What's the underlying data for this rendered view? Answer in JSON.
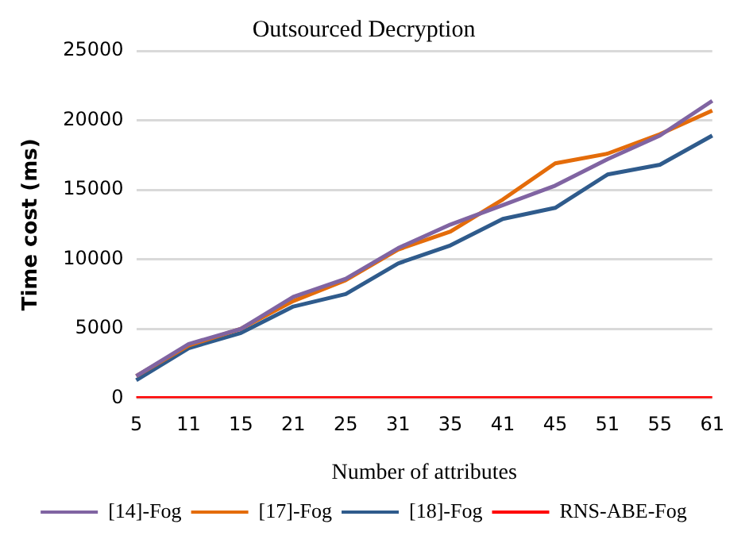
{
  "chart_data": {
    "type": "line",
    "title": "Outsourced Decryption",
    "xlabel": "Number of attributes",
    "ylabel": "Time cost (ms)",
    "categories": [
      "5",
      "11",
      "15",
      "21",
      "25",
      "31",
      "35",
      "41",
      "45",
      "51",
      "55",
      "61"
    ],
    "series": [
      {
        "name": "[14]-Fog",
        "color": "#8064a2",
        "values": [
          1600,
          3900,
          5000,
          7300,
          8600,
          10800,
          12500,
          13900,
          15300,
          17200,
          18900,
          21400
        ]
      },
      {
        "name": "[17]-Fog",
        "color": "#e46c0a",
        "values": [
          1600,
          3800,
          5000,
          7000,
          8500,
          10700,
          12000,
          14300,
          16900,
          17600,
          19000,
          20700
        ]
      },
      {
        "name": "[18]-Fog",
        "color": "#2f5b8c",
        "values": [
          1300,
          3600,
          4700,
          6600,
          7500,
          9700,
          11000,
          12900,
          13700,
          16100,
          16800,
          18900
        ]
      },
      {
        "name": "RNS-ABE-Fog",
        "color": "#ff0000",
        "values": [
          0,
          0,
          0,
          0,
          0,
          0,
          0,
          0,
          0,
          0,
          0,
          0
        ]
      }
    ],
    "ylim": [
      0,
      25000
    ],
    "yticks": [
      0,
      5000,
      10000,
      15000,
      20000,
      25000
    ],
    "grid": "y",
    "legend": "bottom",
    "marker": "none",
    "line_style": "solid"
  }
}
